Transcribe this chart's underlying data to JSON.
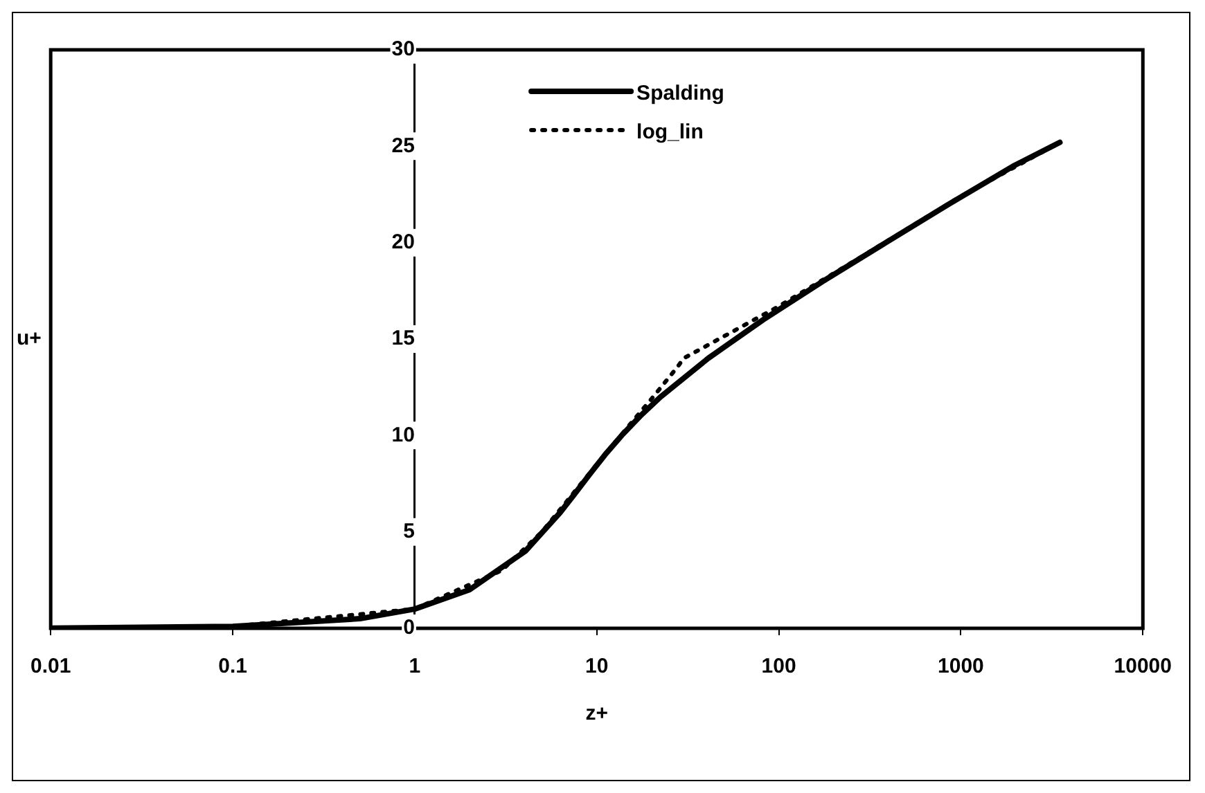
{
  "chart_data": {
    "type": "line",
    "xlabel": "z+",
    "ylabel": "u+",
    "log": "x",
    "xlim": [
      0.01,
      10000
    ],
    "xticks": [
      0.01,
      0.1,
      1,
      10,
      100,
      1000,
      10000
    ],
    "ylim": [
      0,
      30
    ],
    "yticks": [
      0,
      5,
      10,
      15,
      20,
      25,
      30
    ],
    "grid": false,
    "legend": "top",
    "marker": "none",
    "series": [
      {
        "name": "Spalding",
        "color": "#000000",
        "line_style": "solid",
        "x": [
          0.01,
          0.1,
          0.5,
          1,
          2,
          4.05,
          6.29,
          7.6,
          9.16,
          11.1,
          13.7,
          17.3,
          22.4,
          40.9,
          82,
          175,
          387,
          861,
          1965,
          3500
        ],
        "values": [
          0.01,
          0.1,
          0.5,
          1,
          2,
          4,
          6,
          7,
          8,
          9,
          10,
          11,
          12,
          14,
          16,
          18,
          20,
          22,
          24,
          25.2
        ]
      },
      {
        "name": "log_lin",
        "color": "#000000",
        "line_style": "dotted",
        "x": [
          0.01,
          0.1,
          1,
          3,
          5,
          7,
          10,
          15,
          20,
          28,
          30,
          100,
          300,
          1000,
          3500
        ],
        "values": [
          0.01,
          0.1,
          1,
          3,
          5,
          6.7,
          8.5,
          10.5,
          11.9,
          13.6,
          14,
          16.7,
          19.4,
          22.4,
          25.2
        ]
      }
    ]
  }
}
